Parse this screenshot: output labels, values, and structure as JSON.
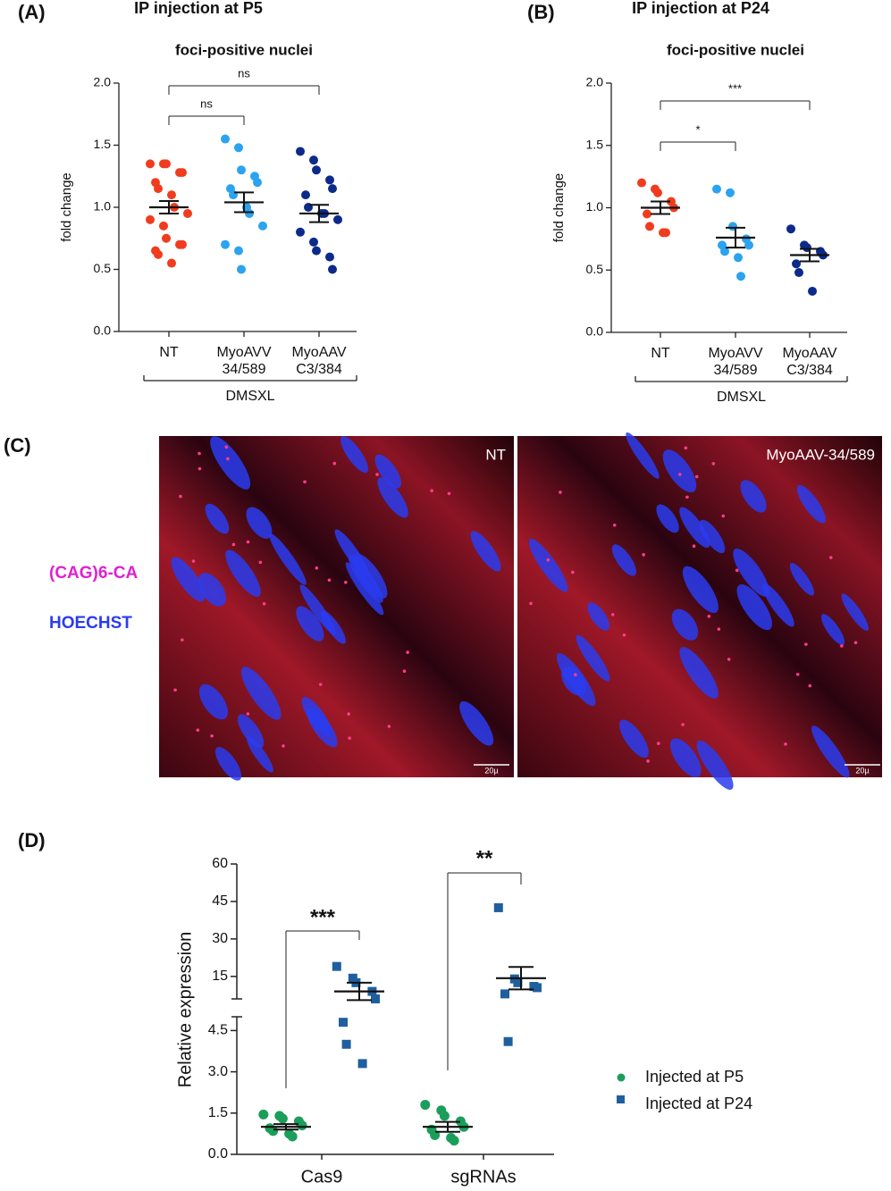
{
  "chart_data": [
    {
      "type": "dot",
      "panel_label": "(A)",
      "heading": "IP injection at P5",
      "title": "foci-positive nuclei",
      "ylabel": "fold change",
      "categories": [
        [
          "NT"
        ],
        [
          "MyoAVV",
          "34/589"
        ],
        [
          "MyoAAV",
          "C3/384"
        ]
      ],
      "group_label": "DMSXL",
      "colors": [
        "#f03c1e",
        "#2ba3ef",
        "#0d2a8a"
      ],
      "points": [
        [
          1.35,
          1.35,
          1.35,
          1.28,
          1.28,
          1.2,
          1.15,
          1.1,
          1.0,
          0.95,
          0.9,
          0.85,
          0.75,
          0.7,
          0.7,
          0.65,
          0.62,
          0.55
        ],
        [
          1.55,
          1.48,
          1.3,
          1.25,
          1.2,
          1.15,
          1.1,
          1.0,
          0.95,
          0.85,
          0.7,
          0.65,
          0.5
        ],
        [
          1.45,
          1.38,
          1.3,
          1.22,
          1.15,
          1.1,
          1.0,
          0.95,
          0.95,
          0.9,
          0.8,
          0.72,
          0.65,
          0.6,
          0.5
        ]
      ],
      "means": [
        1.0,
        1.04,
        0.95
      ],
      "sems": [
        0.05,
        0.08,
        0.07
      ],
      "annotations": [
        "ns",
        "ns"
      ],
      "ylim": [
        0,
        2
      ],
      "yticks": [
        {
          "value": 0,
          "label": "0.0"
        },
        0.5,
        {
          "value": 1,
          "label": "1.0"
        },
        1.5,
        {
          "value": 2,
          "label": "2.0"
        }
      ]
    },
    {
      "type": "dot",
      "panel_label": "(B)",
      "heading": "IP injection at P24",
      "title": "foci-positive nuclei",
      "ylabel": "fold change",
      "categories": [
        [
          "NT"
        ],
        [
          "MyoAVV",
          "34/589"
        ],
        [
          "MyoAAV",
          "C3/384"
        ]
      ],
      "group_label": "DMSXL",
      "colors": [
        "#f03c1e",
        "#2ba3ef",
        "#0d2a8a"
      ],
      "points": [
        [
          1.2,
          1.15,
          1.12,
          1.05,
          1.0,
          0.95,
          0.85,
          0.8,
          0.8
        ],
        [
          1.15,
          1.12,
          0.85,
          0.75,
          0.7,
          0.7,
          0.65,
          0.6,
          0.45
        ],
        [
          0.83,
          0.7,
          0.68,
          0.65,
          0.62,
          0.55,
          0.48,
          0.33
        ]
      ],
      "means": [
        1.0,
        0.76,
        0.62
      ],
      "sems": [
        0.05,
        0.08,
        0.05
      ],
      "annotations": [
        "*",
        "***"
      ],
      "ylim": [
        0,
        2
      ],
      "yticks": [
        {
          "value": 0,
          "label": "0.0"
        },
        0.5,
        {
          "value": 1,
          "label": "1.0"
        },
        1.5,
        {
          "value": 2,
          "label": "2.0"
        }
      ]
    },
    {
      "type": "dot_broken",
      "panel_label": "(D)",
      "ylabel": "Relative expression",
      "categories": [
        "Cas9",
        "sgRNAs"
      ],
      "series": [
        {
          "name": "Injected at P5",
          "color": "#1b9e5a",
          "marker": "circle",
          "values": [
            [
              1.45,
              1.4,
              1.3,
              1.2,
              1.05,
              0.95,
              0.85,
              0.75,
              0.65
            ],
            [
              1.8,
              1.6,
              1.4,
              1.2,
              1.0,
              0.9,
              0.7,
              0.6,
              0.5
            ]
          ],
          "means": [
            1.0,
            1.0
          ],
          "sems": [
            0.1,
            0.18
          ]
        },
        {
          "name": "Injected at P24",
          "color": "#1f5f9e",
          "marker": "square",
          "values": [
            [
              19,
              14.3,
              12.5,
              9,
              6,
              4.8,
              4.0,
              3.3
            ],
            [
              42.5,
              14,
              12.5,
              11,
              10.5,
              8,
              4.1
            ]
          ],
          "means": [
            9,
            14.3
          ],
          "sems": [
            3.5,
            4.5
          ]
        }
      ],
      "annotations": [
        "***",
        "**"
      ],
      "ylim_lower": [
        0,
        5
      ],
      "yticks_lower": [
        {
          "value": 0,
          "label": "0.0"
        },
        1.5,
        {
          "value": 3,
          "label": "3.0"
        },
        4.5
      ],
      "ylim_upper": [
        6,
        60
      ],
      "yticks_upper": [
        15,
        30,
        45,
        60
      ]
    }
  ],
  "image_panel": {
    "panel_label": "(C)",
    "stain_labels": [
      "(CAG)6-CA",
      "HOECHST"
    ],
    "image_labels": [
      "NT",
      "MyoAAV-34/589"
    ],
    "scale_bar": "20µ"
  }
}
